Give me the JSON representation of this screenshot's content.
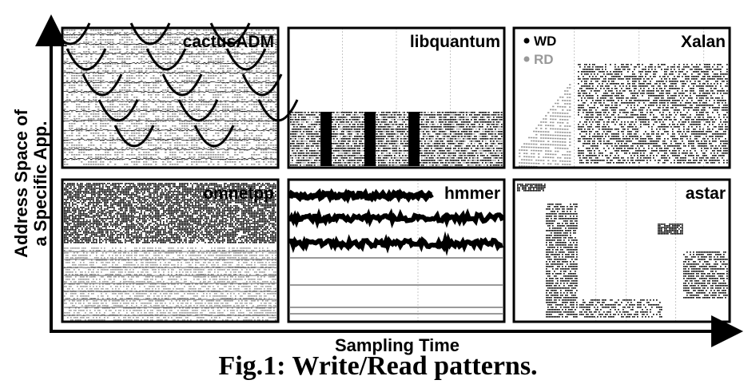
{
  "figure": {
    "caption": "Fig.1: Write/Read patterns.",
    "xlabel": "Sampling Time",
    "ylabel_line1": "Address Space of",
    "ylabel_line2": "a Specific App."
  },
  "legend": {
    "items": [
      {
        "label": "WD",
        "color": "#000000"
      },
      {
        "label": "RD",
        "color": "#999999"
      }
    ]
  },
  "colors": {
    "write": "#000000",
    "read": "#9a9a9a",
    "frame": "#000000",
    "gridline": "#c8c8c8"
  },
  "chart_data": [
    {
      "type": "scatter",
      "title": "cactusADM",
      "pattern": "repeating arcs of writes and reads across the whole address space",
      "series": [
        {
          "name": "WD"
        },
        {
          "name": "RD"
        }
      ]
    },
    {
      "type": "scatter",
      "title": "libquantum",
      "pattern": "dense writes and reads confined to the lower address band",
      "series": [
        {
          "name": "WD"
        },
        {
          "name": "RD"
        }
      ]
    },
    {
      "type": "scatter",
      "title": "Xalan",
      "pattern": "reads ramp up early, then dense writes across the upper address space",
      "series": [
        {
          "name": "WD"
        },
        {
          "name": "RD"
        }
      ]
    },
    {
      "type": "scatter",
      "title": "omnetpp",
      "pattern": "dense writes in the upper band, reads spread over lower addresses",
      "series": [
        {
          "name": "WD"
        },
        {
          "name": "RD"
        }
      ]
    },
    {
      "type": "scatter",
      "title": "hmmer",
      "pattern": "three dense horizontal write bands and sparse read lines",
      "series": [
        {
          "name": "WD"
        },
        {
          "name": "RD"
        }
      ]
    },
    {
      "type": "scatter",
      "title": "astar",
      "pattern": "phased blocks of writes moving through the address space",
      "series": [
        {
          "name": "WD"
        },
        {
          "name": "RD"
        }
      ]
    }
  ]
}
